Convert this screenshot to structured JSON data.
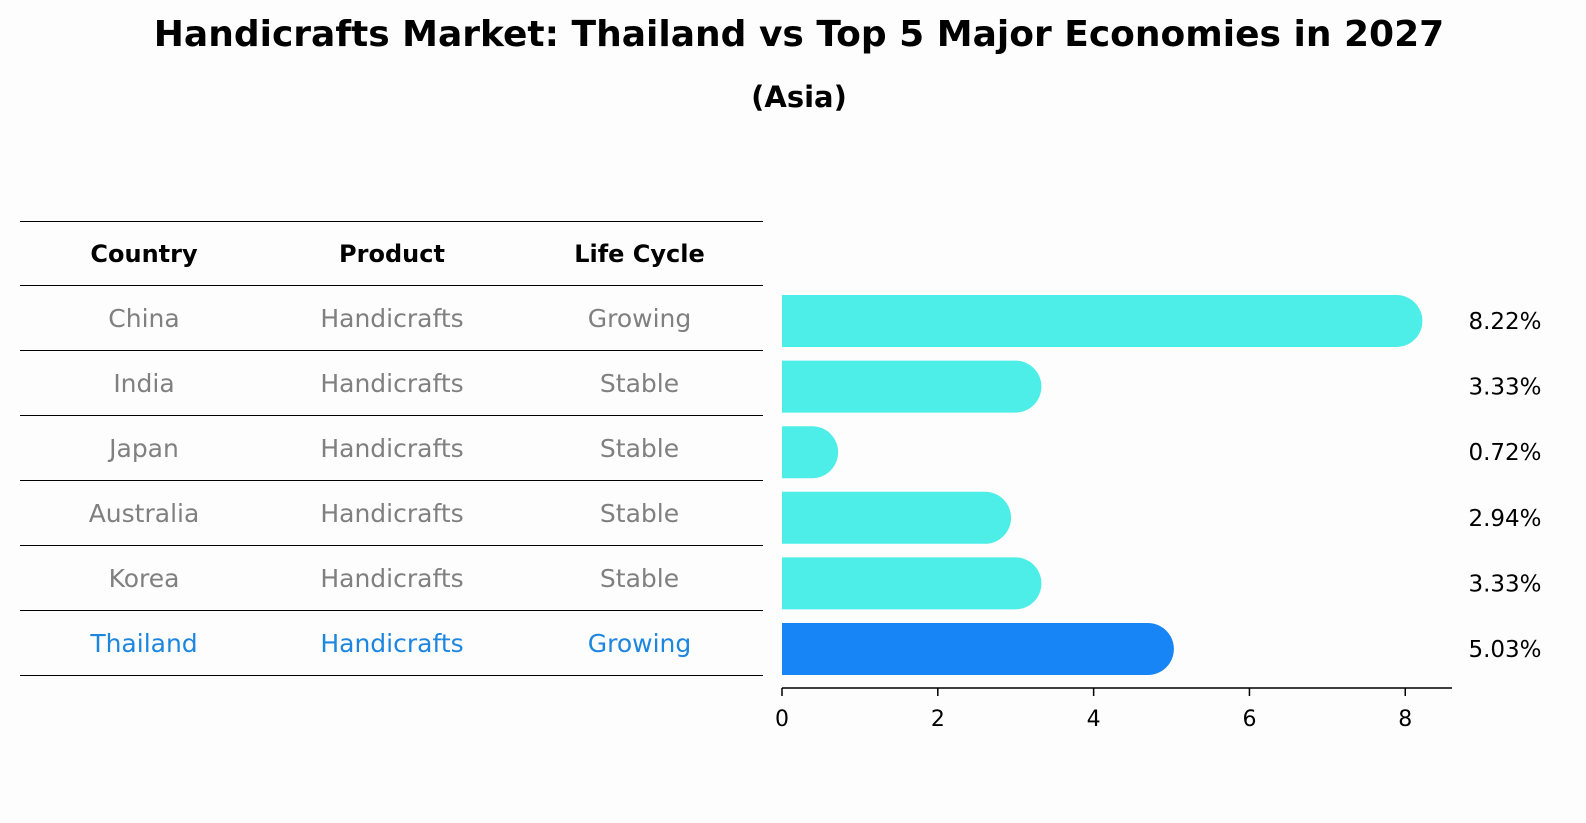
{
  "title": "Handicrafts Market: Thailand vs Top 5 Major Economies in 2027",
  "subtitle": "(Asia)",
  "table": {
    "headers": [
      "Country",
      "Product",
      "Life Cycle"
    ],
    "rows": [
      {
        "country": "China",
        "product": "Handicrafts",
        "life_cycle": "Growing",
        "highlight": false
      },
      {
        "country": "India",
        "product": "Handicrafts",
        "life_cycle": "Stable",
        "highlight": false
      },
      {
        "country": "Japan",
        "product": "Handicrafts",
        "life_cycle": "Stable",
        "highlight": false
      },
      {
        "country": "Australia",
        "product": "Handicrafts",
        "life_cycle": "Stable",
        "highlight": false
      },
      {
        "country": "Korea",
        "product": "Handicrafts",
        "life_cycle": "Stable",
        "highlight": false
      },
      {
        "country": "Thailand",
        "product": "Handicrafts",
        "life_cycle": "Growing",
        "highlight": true
      }
    ]
  },
  "chart_data": {
    "type": "bar",
    "orientation": "horizontal",
    "categories": [
      "China",
      "India",
      "Japan",
      "Australia",
      "Korea",
      "Thailand"
    ],
    "values": [
      8.22,
      3.33,
      0.72,
      2.94,
      3.33,
      5.03
    ],
    "value_labels": [
      "8.22%",
      "3.33%",
      "0.72%",
      "2.94%",
      "3.33%",
      "5.03%"
    ],
    "xticks": [
      0,
      2,
      4,
      6,
      8
    ],
    "xlim": [
      0,
      8.6
    ],
    "grid": false,
    "colors": {
      "default": "#4deee8",
      "highlight": "#1785f5"
    }
  },
  "colors": {
    "header_text": "#000000",
    "cell_text": "#808080",
    "highlight_text": "#1c86e0"
  }
}
